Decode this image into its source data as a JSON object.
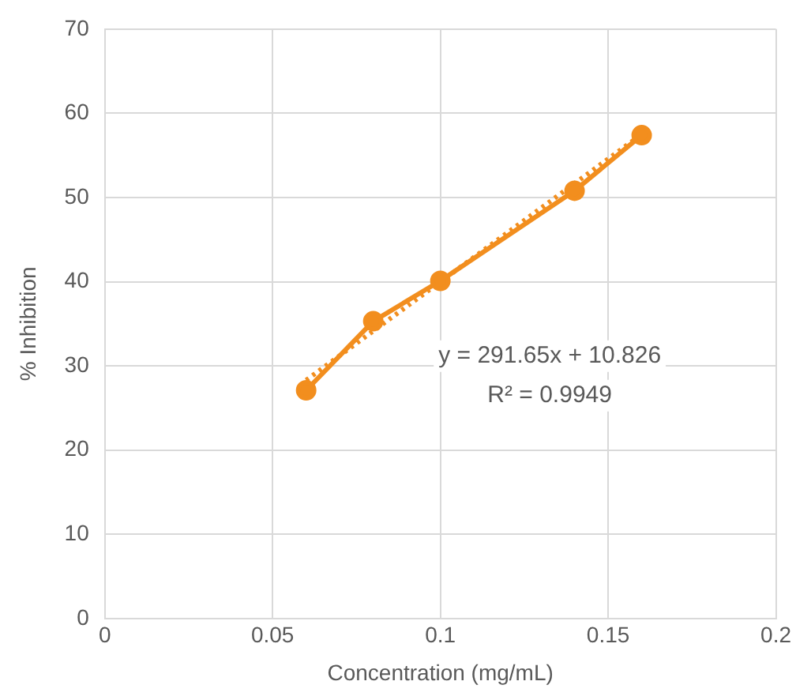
{
  "chart_data": {
    "type": "line",
    "xlabel": "Concentration (mg/mL)",
    "ylabel": "% Inhibition",
    "x": [
      0.06,
      0.08,
      0.1,
      0.14,
      0.16
    ],
    "series": [
      {
        "color": "#f28e1e",
        "values": [
          27.1,
          35.3,
          40.1,
          50.8,
          57.4
        ],
        "marker": "circle",
        "line_style": "solid"
      },
      {
        "type": "line",
        "color": "#f28e1e",
        "x": [
          0.06,
          0.16
        ],
        "values": [
          28.3,
          57.5
        ],
        "marker": "none",
        "line_style": "dotted"
      }
    ],
    "xlim": [
      0,
      0.2
    ],
    "xticks": [
      0,
      0.05,
      0.1,
      0.15,
      0.2
    ],
    "ylim": [
      0,
      70
    ],
    "yticks": [
      0,
      10,
      20,
      30,
      40,
      50,
      60,
      70
    ],
    "grid": true,
    "legend": false,
    "annotations": [
      "y = 291.65x + 10.826",
      "R² = 0.9949"
    ]
  }
}
